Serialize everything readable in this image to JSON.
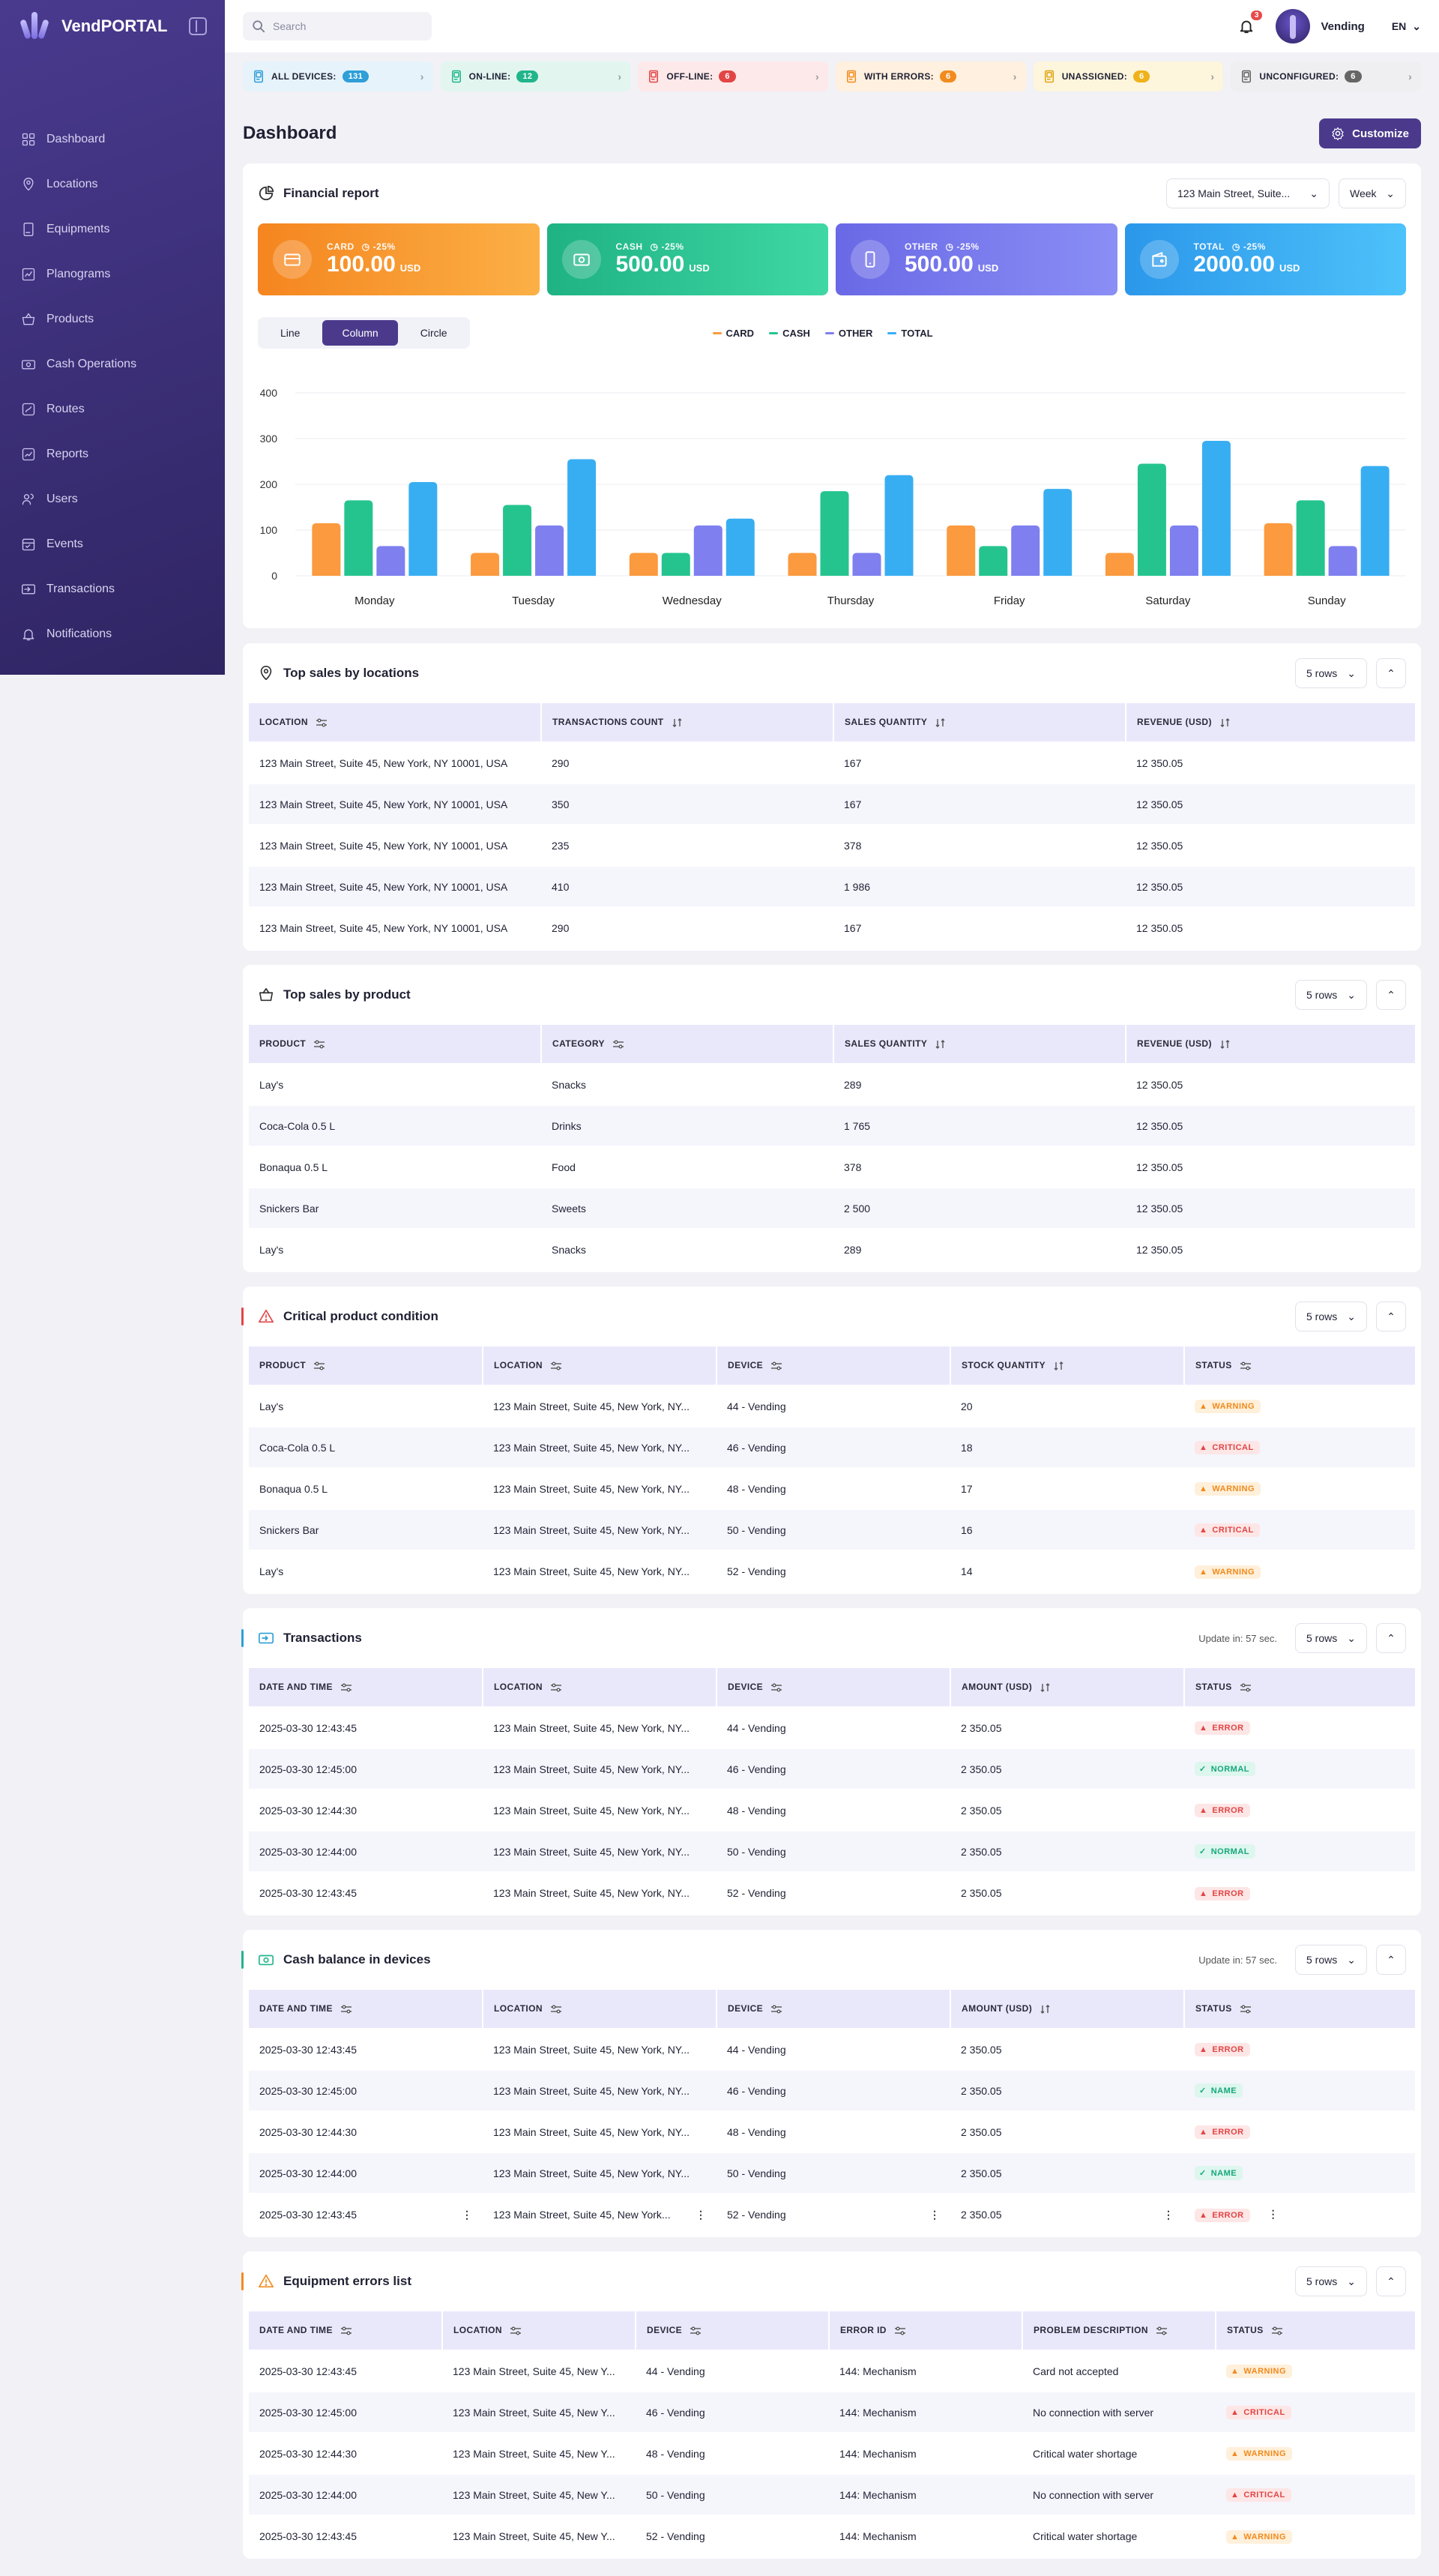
{
  "app": {
    "name": "VendPORTAL"
  },
  "nav": [
    {
      "label": "Dashboard",
      "icon": "grid-icon"
    },
    {
      "label": "Locations",
      "icon": "map-pin-icon"
    },
    {
      "label": "Equipments",
      "icon": "vending-machine-icon"
    },
    {
      "label": "Planograms",
      "icon": "planogram-icon"
    },
    {
      "label": "Products",
      "icon": "basket-icon"
    },
    {
      "label": "Cash Operations",
      "icon": "cash-icon"
    },
    {
      "label": "Routes",
      "icon": "routes-icon"
    },
    {
      "label": "Reports",
      "icon": "reports-icon"
    },
    {
      "label": "Users",
      "icon": "users-icon"
    },
    {
      "label": "Events",
      "icon": "events-icon"
    },
    {
      "label": "Transactions",
      "icon": "transactions-icon"
    },
    {
      "label": "Notifications",
      "icon": "bell-icon"
    }
  ],
  "topbar": {
    "search_placeholder": "Search",
    "notif_count": "3",
    "user": "Vending",
    "lang": "EN"
  },
  "statuses": [
    {
      "label": "ALL DEVICES:",
      "count": "131",
      "bg": "#e6f3fb",
      "badge": "#2f9fd8",
      "icon": "#2f9fd8"
    },
    {
      "label": "ON-LINE:",
      "count": "12",
      "bg": "#e2f6ef",
      "badge": "#21b58b",
      "icon": "#21b58b"
    },
    {
      "label": "OFF-LINE:",
      "count": "6",
      "bg": "#fde9e9",
      "badge": "#e24545",
      "icon": "#e24545"
    },
    {
      "label": "WITH ERRORS:",
      "count": "6",
      "bg": "#fff0df",
      "badge": "#f28b1e",
      "icon": "#f28b1e"
    },
    {
      "label": "UNASSIGNED:",
      "count": "6",
      "bg": "#fdf5dc",
      "badge": "#f0b21a",
      "icon": "#e2a415"
    },
    {
      "label": "UNCONFIGURED:",
      "count": "6",
      "bg": "#efeff1",
      "badge": "#666",
      "icon": "#666"
    }
  ],
  "page": {
    "title": "Dashboard",
    "customize": "Customize"
  },
  "financial": {
    "title": "Financial report",
    "location": "123 Main Street, Suite...",
    "period": "Week",
    "kpis": [
      {
        "label": "CARD",
        "change": "-25%",
        "value": "100.00",
        "unit": "USD",
        "gradient": "linear-gradient(90deg,#f5851f,#fbb046)"
      },
      {
        "label": "CASH",
        "change": "-25%",
        "value": "500.00",
        "unit": "USD",
        "gradient": "linear-gradient(90deg,#1fb283,#3fd8a4)"
      },
      {
        "label": "OTHER",
        "change": "-25%",
        "value": "500.00",
        "unit": "USD",
        "gradient": "linear-gradient(90deg,#6a69e6,#8a8ef5)"
      },
      {
        "label": "TOTAL",
        "change": "-25%",
        "value": "2000.00",
        "unit": "USD",
        "gradient": "linear-gradient(90deg,#2b97ea,#4dc2fa)"
      }
    ],
    "tabs": [
      "Line",
      "Column",
      "Circle"
    ],
    "active_tab": "Column"
  },
  "chart_data": {
    "type": "bar",
    "categories": [
      "Monday",
      "Tuesday",
      "Wednesday",
      "Thursday",
      "Friday",
      "Saturday",
      "Sunday"
    ],
    "series": [
      {
        "name": "CARD",
        "color": "#fb9a3e",
        "values": [
          115,
          50,
          50,
          50,
          110,
          50,
          115
        ]
      },
      {
        "name": "CASH",
        "color": "#25c48f",
        "values": [
          165,
          155,
          50,
          185,
          65,
          245,
          165
        ]
      },
      {
        "name": "OTHER",
        "color": "#7f7ff0",
        "values": [
          65,
          110,
          110,
          50,
          110,
          110,
          65
        ]
      },
      {
        "name": "TOTAL",
        "color": "#38aef2",
        "values": [
          205,
          255,
          125,
          220,
          190,
          295,
          240
        ]
      }
    ],
    "ylim": [
      0,
      400
    ],
    "yticks": [
      0,
      100,
      200,
      300,
      400
    ],
    "grid": true,
    "legend": "top"
  },
  "top_locations": {
    "title": "Top sales by locations",
    "rows_label": "5 rows",
    "headers": [
      "LOCATION",
      "TRANSACTIONS COUNT",
      "SALES QUANTITY",
      "REVENUE (USD)"
    ],
    "rows": [
      [
        "123 Main Street, Suite 45, New York, NY 10001, USA",
        "290",
        "167",
        "12 350.05"
      ],
      [
        "123 Main Street, Suite 45, New York, NY 10001, USA",
        "350",
        "167",
        "12 350.05"
      ],
      [
        "123 Main Street, Suite 45, New York, NY 10001, USA",
        "235",
        "378",
        "12 350.05"
      ],
      [
        "123 Main Street, Suite 45, New York, NY 10001, USA",
        "410",
        "1 986",
        "12 350.05"
      ],
      [
        "123 Main Street, Suite 45, New York, NY 10001, USA",
        "290",
        "167",
        "12 350.05"
      ]
    ]
  },
  "top_products": {
    "title": "Top sales by product",
    "rows_label": "5 rows",
    "headers": [
      "PRODUCT",
      "CATEGORY",
      "SALES QUANTITY",
      "REVENUE (USD)"
    ],
    "rows": [
      [
        "Lay's",
        "Snacks",
        "289",
        "12 350.05"
      ],
      [
        "Coca-Cola 0.5 L",
        "Drinks",
        "1 765",
        "12 350.05"
      ],
      [
        "Bonaqua 0.5 L",
        "Food",
        "378",
        "12 350.05"
      ],
      [
        "Snickers Bar",
        "Sweets",
        "2 500",
        "12 350.05"
      ],
      [
        "Lay's",
        "Snacks",
        "289",
        "12 350.05"
      ]
    ]
  },
  "critical": {
    "title": "Critical product condition",
    "rows_label": "5 rows",
    "headers": [
      "PRODUCT",
      "LOCATION",
      "DEVICE",
      "STOCK QUANTITY",
      "STATUS"
    ],
    "rows": [
      [
        "Lay's",
        "123 Main Street, Suite 45, New York, NY...",
        "44 - Vending",
        "20",
        "WARNING"
      ],
      [
        "Coca-Cola 0.5 L",
        "123 Main Street, Suite 45, New York, NY...",
        "46 - Vending",
        "18",
        "CRITICAL"
      ],
      [
        "Bonaqua 0.5 L",
        "123 Main Street, Suite 45, New York, NY...",
        "48 - Vending",
        "17",
        "WARNING"
      ],
      [
        "Snickers Bar",
        "123 Main Street, Suite 45, New York, NY...",
        "50 - Vending",
        "16",
        "CRITICAL"
      ],
      [
        "Lay's",
        "123 Main Street, Suite 45, New York, NY...",
        "52 - Vending",
        "14",
        "WARNING"
      ]
    ]
  },
  "transactions": {
    "title": "Transactions",
    "update": "Update in: 57 sec.",
    "rows_label": "5 rows",
    "headers": [
      "DATE AND TIME",
      "LOCATION",
      "DEVICE",
      "AMOUNT (USD)",
      "STATUS"
    ],
    "rows": [
      [
        "2025-03-30 12:43:45",
        "123 Main Street, Suite 45, New York, NY...",
        "44 - Vending",
        "2 350.05",
        "ERROR"
      ],
      [
        "2025-03-30 12:45:00",
        "123 Main Street, Suite 45, New York, NY...",
        "46 - Vending",
        "2 350.05",
        "NORMAL"
      ],
      [
        "2025-03-30 12:44:30",
        "123 Main Street, Suite 45, New York, NY...",
        "48 - Vending",
        "2 350.05",
        "ERROR"
      ],
      [
        "2025-03-30 12:44:00",
        "123 Main Street, Suite 45, New York, NY...",
        "50 - Vending",
        "2 350.05",
        "NORMAL"
      ],
      [
        "2025-03-30 12:43:45",
        "123 Main Street, Suite 45, New York, NY...",
        "52 - Vending",
        "2 350.05",
        "ERROR"
      ]
    ]
  },
  "cash": {
    "title": "Cash balance in devices",
    "update": "Update in: 57 sec.",
    "rows_label": "5 rows",
    "headers": [
      "DATE AND TIME",
      "LOCATION",
      "DEVICE",
      "AMOUNT (USD)",
      "STATUS"
    ],
    "rows": [
      [
        "2025-03-30 12:43:45",
        "123 Main Street, Suite 45, New York, NY...",
        "44 - Vending",
        "2 350.05",
        "ERROR"
      ],
      [
        "2025-03-30 12:45:00",
        "123 Main Street, Suite 45, New York, NY...",
        "46 - Vending",
        "2 350.05",
        "NAME"
      ],
      [
        "2025-03-30 12:44:30",
        "123 Main Street, Suite 45, New York, NY...",
        "48 - Vending",
        "2 350.05",
        "ERROR"
      ],
      [
        "2025-03-30 12:44:00",
        "123 Main Street, Suite 45, New York, NY...",
        "50 - Vending",
        "2 350.05",
        "NAME"
      ],
      [
        "2025-03-30 12:43:45",
        "123 Main Street, Suite 45, New York...",
        "52 - Vending",
        "2 350.05",
        "ERROR"
      ]
    ]
  },
  "errors": {
    "title": "Equipment errors list",
    "rows_label": "5 rows",
    "headers": [
      "DATE AND TIME",
      "LOCATION",
      "DEVICE",
      "ERROR ID",
      "PROBLEM DESCRIPTION",
      "STATUS"
    ],
    "rows": [
      [
        "2025-03-30 12:43:45",
        "123 Main Street, Suite 45, New Y...",
        "44 - Vending",
        "144: Mechanism",
        "Card not accepted",
        "WARNING"
      ],
      [
        "2025-03-30 12:45:00",
        "123 Main Street, Suite 45, New Y...",
        "46 - Vending",
        "144: Mechanism",
        "No connection with server",
        "CRITICAL"
      ],
      [
        "2025-03-30 12:44:30",
        "123 Main Street, Suite 45, New Y...",
        "48 - Vending",
        "144: Mechanism",
        "Critical water shortage",
        "WARNING"
      ],
      [
        "2025-03-30 12:44:00",
        "123 Main Street, Suite 45, New Y...",
        "50 - Vending",
        "144: Mechanism",
        "No connection with server",
        "CRITICAL"
      ],
      [
        "2025-03-30 12:43:45",
        "123 Main Street, Suite 45, New Y...",
        "52 - Vending",
        "144: Mechanism",
        "Critical water shortage",
        "WARNING"
      ]
    ]
  }
}
